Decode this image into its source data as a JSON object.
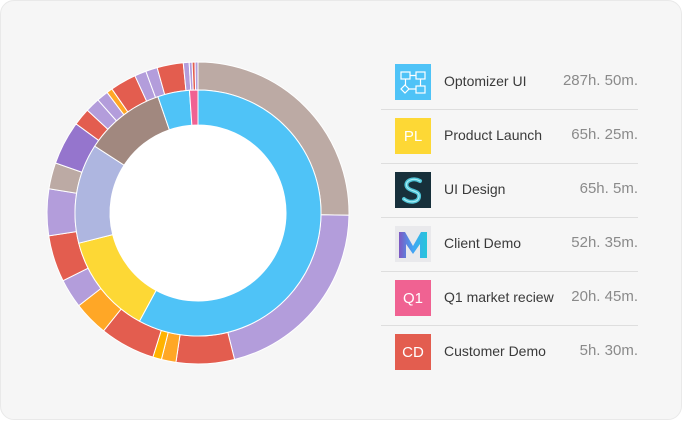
{
  "chart_data": {
    "type": "pie",
    "title": "",
    "inner_ring": {
      "slices": [
        {
          "value": 287.83,
          "color": "#4fc3f7",
          "label": "Optomizer UI"
        },
        {
          "value": 65.42,
          "color": "#fdd835",
          "label": "Product Launch"
        },
        {
          "value": 65.08,
          "color": "#aeb6e0"
        },
        {
          "value": 52.58,
          "color": "#a1887f"
        },
        {
          "value": 20.75,
          "color": "#4fc3f7"
        },
        {
          "value": 5.5,
          "color": "#f06292"
        }
      ]
    },
    "outer_ring": {
      "slices": [
        {
          "value": 81,
          "color": "#bcaaa4"
        },
        {
          "value": 67,
          "color": "#b39ddb"
        },
        {
          "value": 20,
          "color": "#e35d4f"
        },
        {
          "value": 5,
          "color": "#ffa726"
        },
        {
          "value": 3,
          "color": "#ffb300"
        },
        {
          "value": 19,
          "color": "#e35d4f"
        },
        {
          "value": 12,
          "color": "#ffa726"
        },
        {
          "value": 10,
          "color": "#b39ddb"
        },
        {
          "value": 16,
          "color": "#e35d4f"
        },
        {
          "value": 16,
          "color": "#b39ddb"
        },
        {
          "value": 9,
          "color": "#bcaaa4"
        },
        {
          "value": 15,
          "color": "#9575cd"
        },
        {
          "value": 6,
          "color": "#e35d4f"
        },
        {
          "value": 5,
          "color": "#b39ddb"
        },
        {
          "value": 4,
          "color": "#b39ddb"
        },
        {
          "value": 2,
          "color": "#ffa726"
        },
        {
          "value": 9,
          "color": "#e35d4f"
        },
        {
          "value": 4,
          "color": "#b39ddb"
        },
        {
          "value": 4,
          "color": "#b39ddb"
        },
        {
          "value": 9,
          "color": "#e35d4f"
        },
        {
          "value": 2,
          "color": "#b39ddb"
        },
        {
          "value": 1,
          "color": "#b39ddb"
        },
        {
          "value": 1,
          "color": "#e35d4f"
        },
        {
          "value": 1,
          "color": "#b39ddb"
        }
      ]
    }
  },
  "projects": [
    {
      "name": "Optomizer UI",
      "time": "287h. 50m.",
      "badge": "",
      "icon": "flowchart-icon",
      "color": "#4fc3f7"
    },
    {
      "name": "Product Launch",
      "time": "65h. 25m.",
      "badge": "PL",
      "icon": "",
      "color": "#fdd835"
    },
    {
      "name": "UI Design",
      "time": "65h. 5m.",
      "badge": "",
      "icon": "s-logo-icon",
      "color": "#17303b"
    },
    {
      "name": "Client Demo",
      "time": "52h. 35m.",
      "badge": "",
      "icon": "m-logo-icon",
      "color": "#e9e9ec"
    },
    {
      "name": "Q1 market reciew",
      "time": "20h. 45m.",
      "badge": "Q1",
      "icon": "",
      "color": "#f06292"
    },
    {
      "name": "Customer Demo",
      "time": "5h. 30m.",
      "badge": "CD",
      "icon": "",
      "color": "#e35d4f"
    }
  ]
}
